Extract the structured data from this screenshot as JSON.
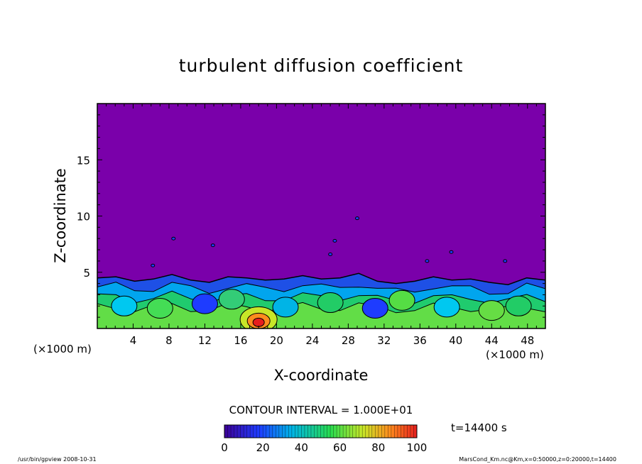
{
  "chart_data": {
    "type": "heatmap",
    "title": "turbulent diffusion coefficient",
    "xlabel": "X-coordinate",
    "ylabel": "Z-coordinate",
    "x_unit": "(×1000 m)",
    "x_unit_right": "(×1000 m)",
    "xlim": [
      0,
      50
    ],
    "ylim": [
      0,
      20
    ],
    "x_ticks": [
      "4",
      "8",
      "12",
      "16",
      "20",
      "24",
      "28",
      "32",
      "36",
      "40",
      "44",
      "48"
    ],
    "y_ticks": [
      "5",
      "10",
      "15"
    ],
    "contour_interval_text": "CONTOUR INTERVAL = 1.000E+01",
    "time_label": "t=14400 s",
    "colorbar": {
      "range": [
        0,
        100
      ],
      "ticks": [
        "0",
        "20",
        "40",
        "60",
        "80",
        "100"
      ],
      "colors": [
        "#3c0096",
        "#1e3cff",
        "#00b4e6",
        "#28dc50",
        "#c8e628",
        "#ff8c1e",
        "#e61e1e"
      ]
    },
    "background_color": "#7a00aa",
    "boundary_layer_top_km": [
      4.5,
      4.6,
      4.2,
      4.4,
      4.8,
      4.3,
      4.1,
      4.6,
      4.5,
      4.3,
      4.4,
      4.7,
      4.4,
      4.5,
      4.9,
      4.2,
      4.0,
      4.2,
      4.6,
      4.3,
      4.4,
      4.1,
      3.9,
      4.5,
      4.3
    ],
    "peak_value": 100,
    "peak_location_km": {
      "x": 18,
      "z": 0.8
    },
    "footer_left": "/usr/bin/gpview   2008-10-31",
    "footer_right": "MarsCond_Km.nc@Km,x=0:50000,z=0:20000,t=14400"
  }
}
